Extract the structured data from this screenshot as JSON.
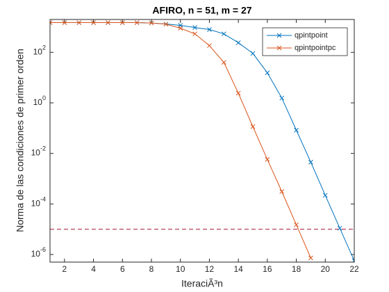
{
  "chart_data": {
    "type": "line",
    "title": "AFIRO, n = 51, m = 27",
    "xlabel": "IteraciÃ³n",
    "ylabel": "Norma de las condiciones de primer orden",
    "x": [
      1,
      2,
      3,
      4,
      5,
      6,
      7,
      8,
      9,
      10,
      11,
      12,
      13,
      14,
      15,
      16,
      17,
      18,
      19,
      20,
      21,
      22
    ],
    "series": [
      {
        "name": "qpintpoint",
        "color": "#0072bd",
        "values": [
          1500,
          1500,
          1500,
          1500,
          1500,
          1500,
          1500,
          1450,
          1320,
          1170,
          960,
          800,
          540,
          240,
          91,
          15.5,
          1.55,
          0.083,
          0.0045,
          0.00022,
          1.1e-05,
          5.7e-07
        ]
      },
      {
        "name": "qpintpointpc",
        "color": "#d95319",
        "values": [
          1500,
          1500,
          1500,
          1500,
          1500,
          1500,
          1500,
          1450,
          1300,
          900,
          540,
          185,
          40,
          2.4,
          0.115,
          0.0058,
          0.00031,
          1.5e-05,
          7.3e-07,
          null,
          null,
          null
        ]
      }
    ],
    "hline": {
      "value": 1e-05,
      "color": "#a2142f"
    },
    "xlim": [
      1,
      22
    ],
    "xticks": [
      2,
      4,
      6,
      8,
      10,
      12,
      14,
      16,
      18,
      20,
      22
    ],
    "ylim": [
      5e-07,
      2000
    ],
    "yscale": "log",
    "yticks": [
      {
        "value": 1e-06,
        "label": "10^-6"
      },
      {
        "value": 0.0001,
        "label": "10^-4"
      },
      {
        "value": 0.01,
        "label": "10^-2"
      },
      {
        "value": 1,
        "label": "10^0"
      },
      {
        "value": 100,
        "label": "10^2"
      }
    ],
    "legend": "northeast"
  }
}
